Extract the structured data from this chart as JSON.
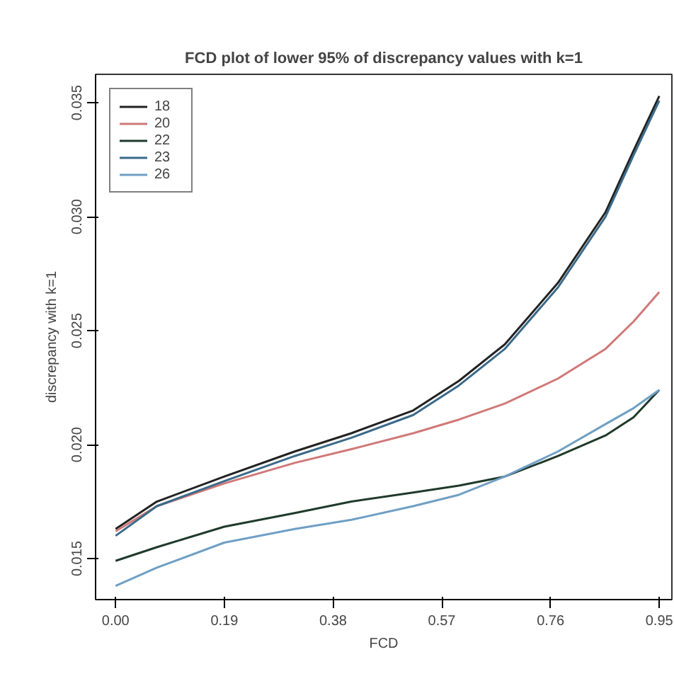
{
  "chart_data": {
    "type": "line",
    "title": "FCD plot of lower 95% of discrepancy values with k=1",
    "xlabel": "FCD",
    "ylabel": "discrepancy with k=1",
    "xlim": [
      -0.035,
      0.972
    ],
    "ylim": [
      0.0132,
      0.03625
    ],
    "xticks": [
      {
        "value": 0,
        "label": "0.00"
      },
      {
        "value": 0.19,
        "label": "0.19"
      },
      {
        "value": 0.38,
        "label": "0.38"
      },
      {
        "value": 0.57,
        "label": "0.57"
      },
      {
        "value": 0.76,
        "label": "0.76"
      },
      {
        "value": 0.95,
        "label": "0.95"
      }
    ],
    "yticks": [
      {
        "value": 0.015,
        "label": "0.015"
      },
      {
        "value": 0.02,
        "label": "0.020"
      },
      {
        "value": 0.025,
        "label": "0.025"
      },
      {
        "value": 0.03,
        "label": "0.030"
      },
      {
        "value": 0.035,
        "label": "0.035"
      }
    ],
    "x": [
      0,
      0.072,
      0.19,
      0.313,
      0.412,
      0.52,
      0.6,
      0.68,
      0.773,
      0.856,
      0.905,
      0.95
    ],
    "series": [
      {
        "name": "18",
        "color": "#222222",
        "values": [
          0.0163,
          0.0175,
          0.0186,
          0.0197,
          0.0205,
          0.0215,
          0.0228,
          0.0244,
          0.0271,
          0.0302,
          0.0329,
          0.0353
        ]
      },
      {
        "name": "20",
        "color": "#d07878",
        "values": [
          0.0162,
          0.0173,
          0.0183,
          0.0192,
          0.0198,
          0.0205,
          0.0211,
          0.0218,
          0.0229,
          0.0242,
          0.0254,
          0.0267
        ]
      },
      {
        "name": "22",
        "color": "#1f3a2a",
        "values": [
          0.0149,
          0.0155,
          0.0164,
          0.017,
          0.0175,
          0.0179,
          0.0182,
          0.0186,
          0.0195,
          0.0204,
          0.0212,
          0.0224
        ]
      },
      {
        "name": "23",
        "color": "#3a6a8a",
        "values": [
          0.016,
          0.0173,
          0.0184,
          0.0195,
          0.0203,
          0.0213,
          0.0226,
          0.0242,
          0.0269,
          0.03,
          0.0327,
          0.0351
        ]
      },
      {
        "name": "26",
        "color": "#6f9fc4",
        "values": [
          0.0138,
          0.0146,
          0.0157,
          0.0163,
          0.0167,
          0.0173,
          0.0178,
          0.0186,
          0.0197,
          0.0209,
          0.0216,
          0.0224
        ]
      }
    ],
    "legend": "top left",
    "grid": false,
    "line_style": "solid"
  }
}
